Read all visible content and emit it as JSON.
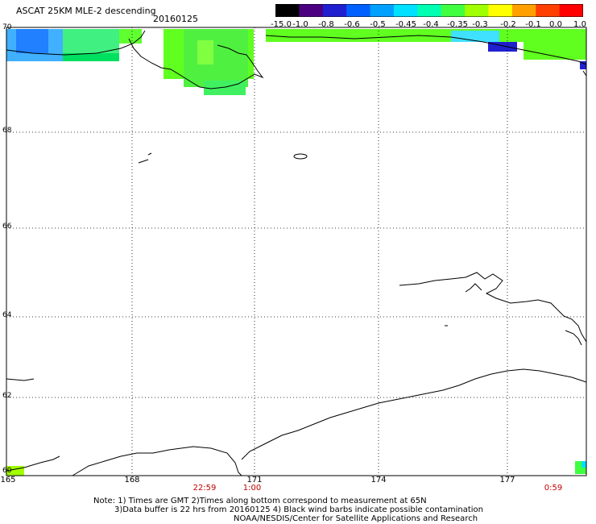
{
  "header": {
    "title": "ASCAT 25KM MLE-2 descending",
    "date": "20160125"
  },
  "colorbar": {
    "labels": [
      "-15.0",
      "-1.0",
      "-0.8",
      "-0.6",
      "-0.5",
      "-0.45",
      "-0.4",
      "-0.35",
      "-0.3",
      "-0.2",
      "-0.1",
      "0.0",
      "1.0"
    ],
    "colors": [
      "#000000",
      "#4b0082",
      "#2020d0",
      "#0060ff",
      "#00a0ff",
      "#00e0ff",
      "#00ffb0",
      "#40ff40",
      "#a0ff00",
      "#ffff00",
      "#ffa000",
      "#ff4000",
      "#ff0000"
    ]
  },
  "axes": {
    "lat_labels": [
      "70",
      "68",
      "66",
      "64",
      "62",
      "60"
    ],
    "lon_labels": [
      "165",
      "168",
      "171",
      "174",
      "177"
    ]
  },
  "times": [
    "22:59",
    "1:00",
    "0:59"
  ],
  "notes": {
    "line1": "Note: 1) Times are GMT 2)Times along bottom correspond to measurement at 65N",
    "line2": "3)Data buffer is 22 hrs from 20160125 4) Black wind barbs indicate possible contamination",
    "line3": "NOAA/NESDIS/Center for Satellite Applications and Research"
  }
}
